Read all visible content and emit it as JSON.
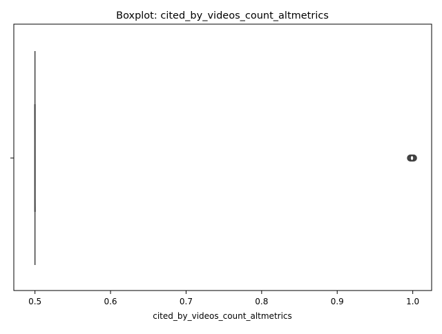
{
  "chart_data": {
    "type": "boxplot",
    "title": "Boxplot: cited_by_videos_count_altmetrics",
    "xlabel": "cited_by_videos_count_altmetrics",
    "ylabel": "",
    "orientation": "horizontal",
    "xlim": [
      0.472,
      1.025
    ],
    "x_ticks": [
      0.5,
      0.6,
      0.7,
      0.8,
      0.9,
      1.0
    ],
    "x_tick_labels": [
      "0.5",
      "0.6",
      "0.7",
      "0.8",
      "0.9",
      "1.0"
    ],
    "grid": false,
    "box": {
      "whisker_low": 0.5,
      "q1": 0.5,
      "median": 0.5,
      "q3": 0.5,
      "whisker_high": 0.5
    },
    "outliers": [
      0.997,
      0.998,
      0.999,
      1.0,
      1.001
    ],
    "colors": {
      "box_edge": "#3f3f3f",
      "axes": "#000000"
    }
  }
}
